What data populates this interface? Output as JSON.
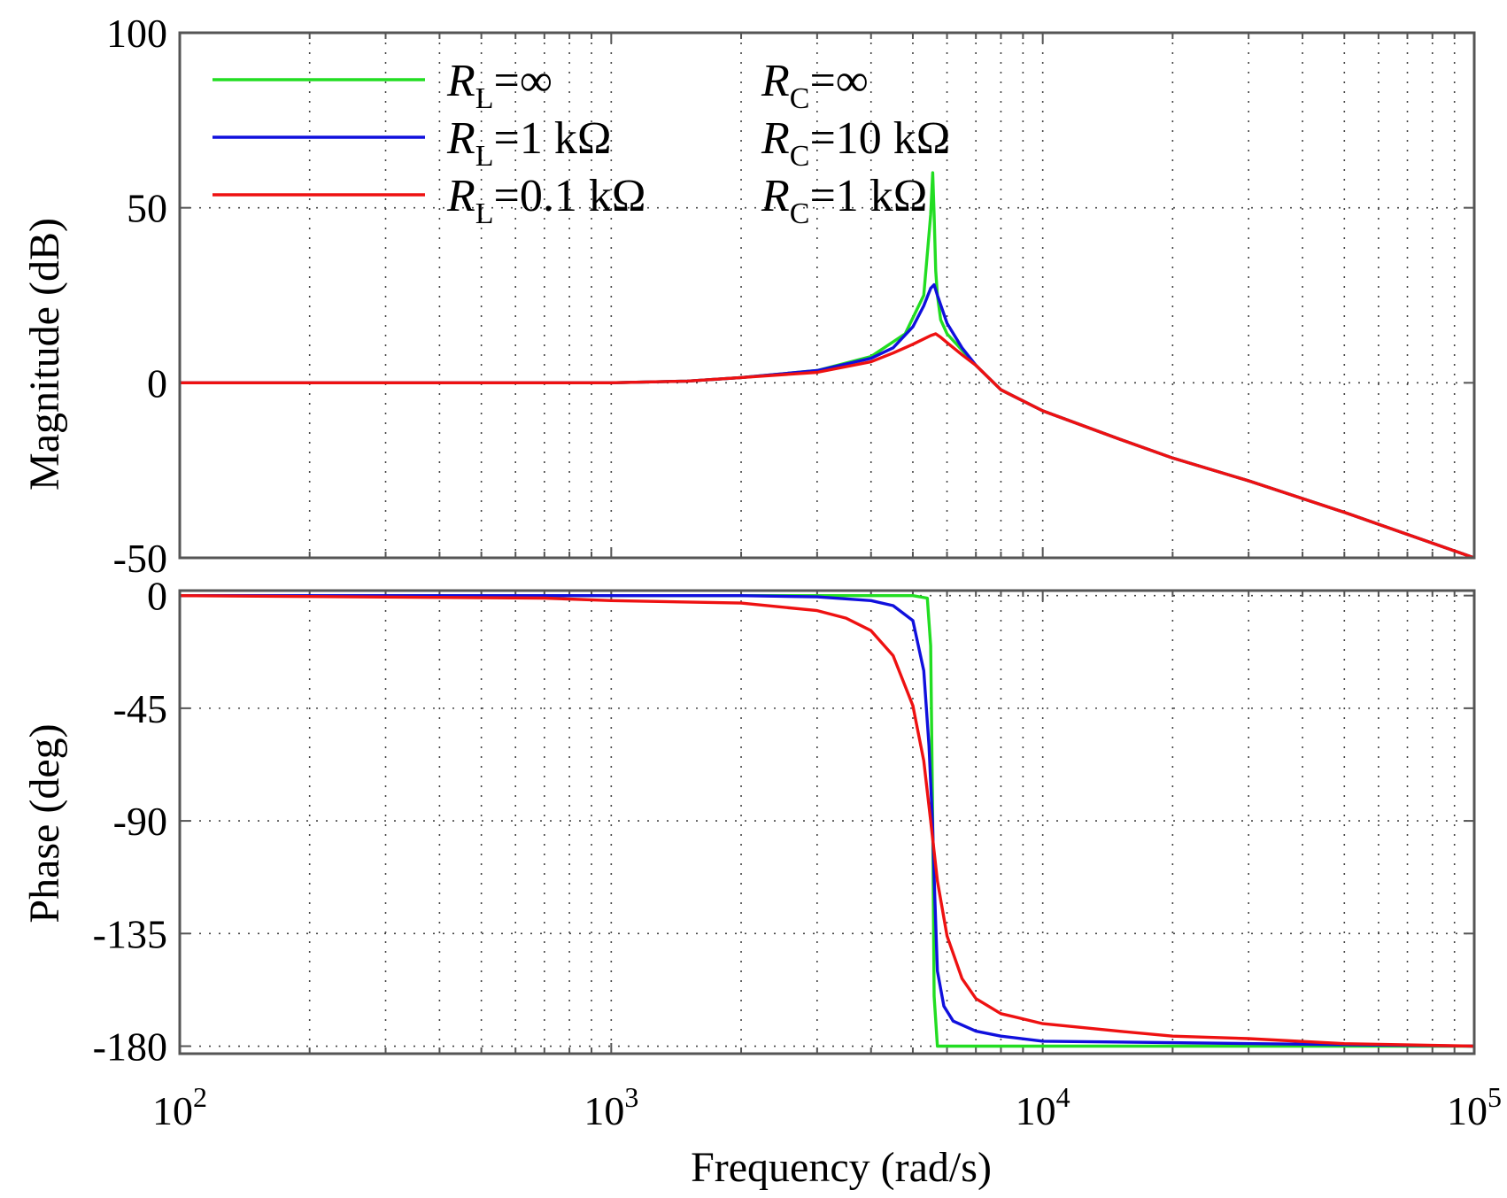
{
  "chart_data": [
    {
      "type": "line",
      "name": "magnitude",
      "xlabel": "",
      "ylabel": "Magnitude (dB)",
      "xscale": "log",
      "xlim": [
        100,
        100000
      ],
      "ylim": [
        -50,
        100
      ],
      "yticks": [
        -50,
        0,
        50,
        100
      ],
      "ytick_labels": [
        "-50",
        "0",
        "50",
        "100"
      ],
      "grid": true,
      "legend": {
        "position": "top-left",
        "entries": [
          {
            "series": "green",
            "rl_label": "R",
            "rl_sub": "L",
            "rl_value": "=∞",
            "rc_label": "R",
            "rc_sub": "C",
            "rc_value": "=∞"
          },
          {
            "series": "blue",
            "rl_label": "R",
            "rl_sub": "L",
            "rl_value": "=1 kΩ",
            "rc_label": "R",
            "rc_sub": "C",
            "rc_value": "=10 kΩ"
          },
          {
            "series": "red",
            "rl_label": "R",
            "rl_sub": "L",
            "rl_value": "=0.1 kΩ",
            "rc_label": "R",
            "rc_sub": "C",
            "rc_value": "=1 kΩ"
          }
        ]
      },
      "series": [
        {
          "name": "green",
          "color": "#22dd22",
          "x": [
            100,
            1000,
            1500,
            2000,
            3000,
            4000,
            4800,
            5300,
            5500,
            5560,
            5600,
            5650,
            5700,
            5800,
            6000,
            7000,
            8000,
            10000,
            15000,
            20000,
            30000,
            50000,
            100000
          ],
          "y": [
            0,
            0,
            0.5,
            1.5,
            3.5,
            7.5,
            14,
            25,
            48,
            60,
            48,
            32,
            25,
            18,
            14,
            5,
            -2,
            -8,
            -16,
            -21.5,
            -28,
            -37,
            -50
          ]
        },
        {
          "name": "blue",
          "color": "#1010dd",
          "x": [
            100,
            1000,
            1500,
            2000,
            3000,
            4000,
            4500,
            5000,
            5300,
            5500,
            5600,
            5700,
            6000,
            6500,
            7000,
            8000,
            10000,
            15000,
            20000,
            30000,
            50000,
            100000
          ],
          "y": [
            0,
            0,
            0.5,
            1.5,
            3.5,
            7,
            10,
            16,
            22,
            27,
            28,
            25,
            17,
            10,
            5,
            -2,
            -8,
            -16,
            -21.5,
            -28,
            -37,
            -50
          ]
        },
        {
          "name": "red",
          "color": "#ee1111",
          "x": [
            100,
            1000,
            1500,
            2000,
            3000,
            4000,
            4500,
            5000,
            5500,
            5650,
            5800,
            6000,
            6500,
            7000,
            8000,
            10000,
            15000,
            20000,
            30000,
            50000,
            100000
          ],
          "y": [
            0,
            0,
            0.5,
            1.5,
            3,
            6,
            8.5,
            11,
            13.5,
            14,
            13,
            11.5,
            8,
            5,
            -2,
            -8,
            -16,
            -21.5,
            -28,
            -37,
            -50
          ]
        }
      ]
    },
    {
      "type": "line",
      "name": "phase",
      "xlabel": "Frequency (rad/s)",
      "ylabel": "Phase (deg)",
      "xscale": "log",
      "xlim": [
        100,
        100000
      ],
      "xticks": [
        100,
        1000,
        10000,
        100000
      ],
      "xtick_base": "10",
      "xtick_exponents": [
        "2",
        "3",
        "4",
        "5"
      ],
      "ylim": [
        -183,
        2
      ],
      "yticks": [
        0,
        -45,
        -90,
        -135,
        -180
      ],
      "ytick_labels": [
        "0",
        "-45",
        "-90",
        "-135",
        "-180"
      ],
      "grid": true,
      "series": [
        {
          "name": "green",
          "color": "#22dd22",
          "x": [
            100,
            1000,
            5000,
            5400,
            5500,
            5560,
            5600,
            5700,
            7000,
            100000
          ],
          "y": [
            0,
            0,
            0,
            -1,
            -20,
            -90,
            -160,
            -180,
            -180,
            -180
          ]
        },
        {
          "name": "blue",
          "color": "#1010dd",
          "x": [
            100,
            1000,
            2000,
            3000,
            4000,
            4500,
            5000,
            5300,
            5450,
            5550,
            5620,
            5700,
            5900,
            6200,
            7000,
            8000,
            10000,
            100000
          ],
          "y": [
            0,
            0,
            0,
            -0.5,
            -2,
            -4,
            -10,
            -30,
            -60,
            -90,
            -120,
            -150,
            -164,
            -170,
            -174,
            -176,
            -178,
            -180
          ]
        },
        {
          "name": "red",
          "color": "#ee1111",
          "x": [
            100,
            700,
            1000,
            2000,
            3000,
            3500,
            4000,
            4500,
            5000,
            5300,
            5500,
            5700,
            6000,
            6500,
            7000,
            8000,
            10000,
            15000,
            20000,
            30000,
            50000,
            100000
          ],
          "y": [
            0,
            -1,
            -2,
            -3,
            -6,
            -9,
            -14,
            -24,
            -44,
            -66,
            -90,
            -114,
            -136,
            -153,
            -161,
            -167,
            -171,
            -174,
            -176,
            -177,
            -179,
            -180
          ]
        }
      ]
    }
  ]
}
